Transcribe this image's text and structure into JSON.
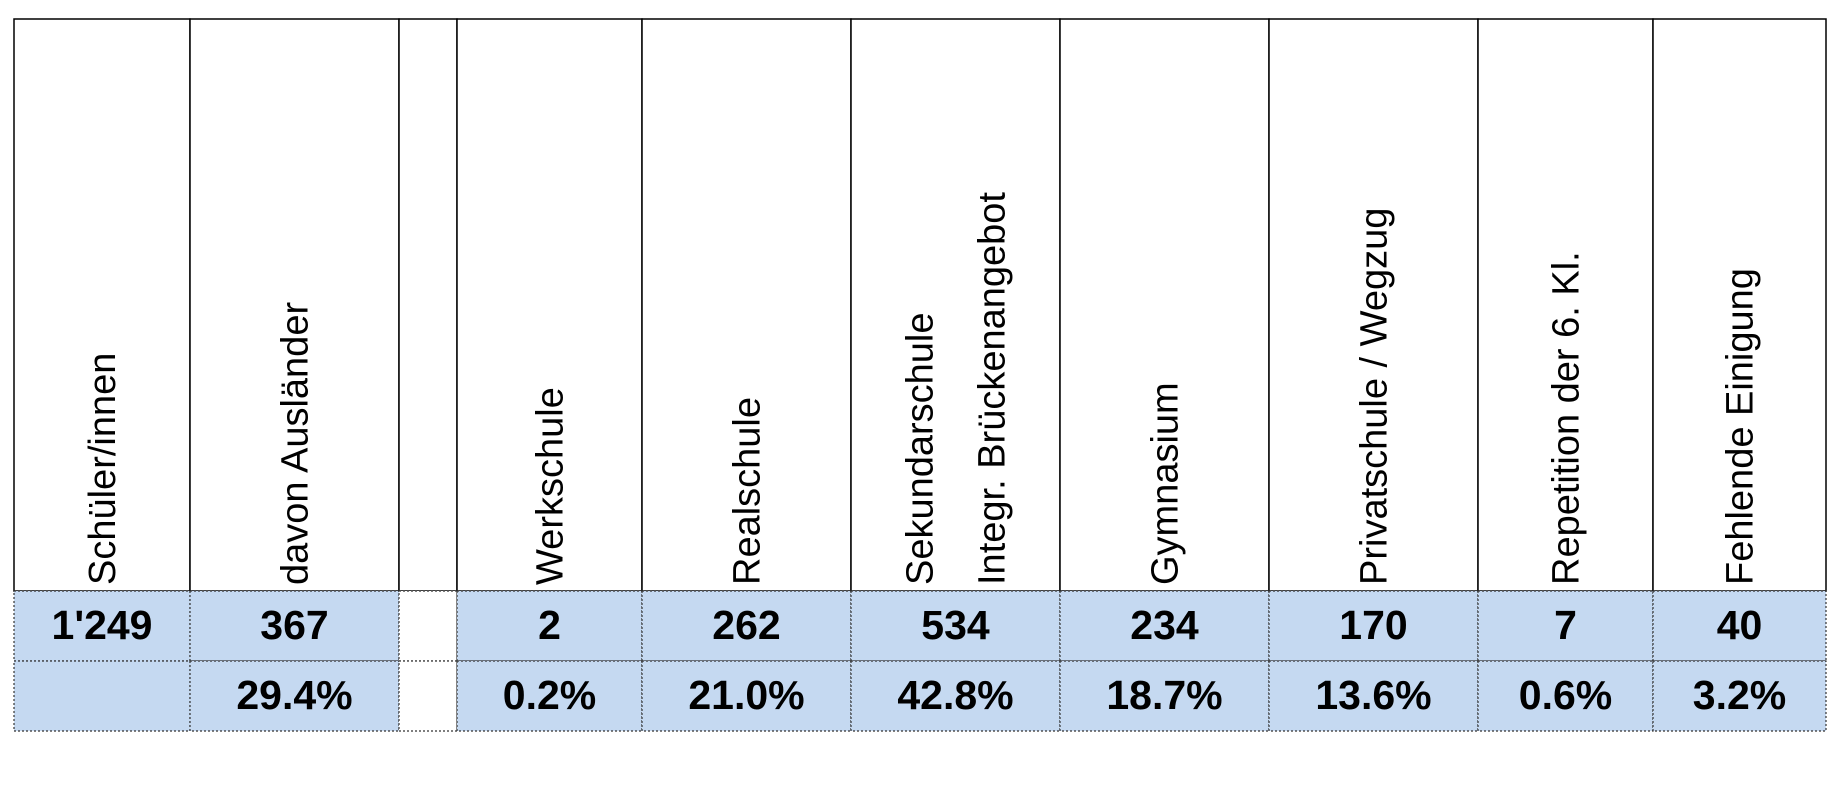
{
  "table": {
    "headers": [
      "Schüler/innen",
      "davon Ausländer",
      null,
      "Werkschule",
      "Realschule",
      [
        "Sekundarschule",
        "Integr. Brückenangebot"
      ],
      "Gymnasium",
      "Privatschule / Wegzug",
      "Repetition der 6. Kl.",
      "Fehlende Einigung"
    ],
    "rows": [
      [
        "1'249",
        "367",
        null,
        "2",
        "262",
        "534",
        "234",
        "170",
        "7",
        "40"
      ],
      [
        null,
        "29.4%",
        null,
        "0.2%",
        "21.0%",
        "42.8%",
        "18.7%",
        "13.6%",
        "0.6%",
        "3.2%"
      ]
    ]
  }
}
